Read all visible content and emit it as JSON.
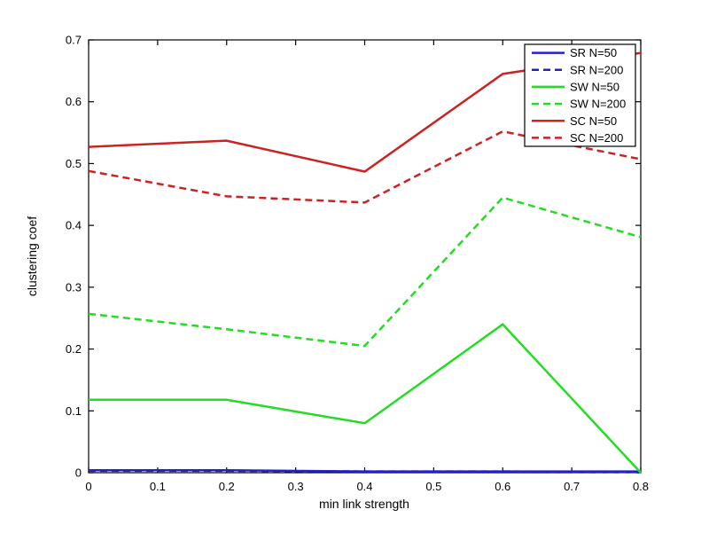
{
  "figure": {
    "background": "#ffffff",
    "axis_color": "#000000",
    "legend_border_color": "#000000",
    "legend_background": "#ffffff"
  },
  "chart_data": {
    "type": "line",
    "title": "",
    "xlabel": "min link strength",
    "ylabel": "clustering coef",
    "xlim": [
      0,
      0.8
    ],
    "ylim": [
      0,
      0.7
    ],
    "grid": false,
    "legend_position": "upper-right-inside",
    "xtick_labels": [
      "0",
      "0.1",
      "0.2",
      "0.3",
      "0.4",
      "0.5",
      "0.6",
      "0.7",
      "0.8"
    ],
    "xtick_values": [
      0,
      0.1,
      0.2,
      0.3,
      0.4,
      0.5,
      0.6,
      0.7,
      0.8
    ],
    "ytick_labels": [
      "0",
      "0.1",
      "0.2",
      "0.3",
      "0.4",
      "0.5",
      "0.6",
      "0.7"
    ],
    "ytick_values": [
      0,
      0.1,
      0.2,
      0.3,
      0.4,
      0.5,
      0.6,
      0.7
    ],
    "x": [
      0,
      0.2,
      0.4,
      0.6,
      0.8
    ],
    "series": [
      {
        "name": "SR N=50",
        "color": "#2222cc",
        "style": "solid",
        "values": [
          0.004,
          0.004,
          0.002,
          0.002,
          0.002
        ]
      },
      {
        "name": "SR N=200",
        "color": "#2222cc",
        "style": "dashed",
        "values": [
          0.003,
          0.003,
          0.002,
          0.002,
          0.001
        ]
      },
      {
        "name": "SW N=50",
        "color": "#22dd22",
        "style": "solid",
        "values": [
          0.118,
          0.118,
          0.08,
          0.24,
          0.0
        ]
      },
      {
        "name": "SW N=200",
        "color": "#22dd22",
        "style": "dashed",
        "values": [
          0.257,
          0.232,
          0.205,
          0.445,
          0.381
        ]
      },
      {
        "name": "SC N=50",
        "color": "#cc2222",
        "style": "solid",
        "values": [
          0.527,
          0.537,
          0.487,
          0.645,
          0.679
        ]
      },
      {
        "name": "SC N=200",
        "color": "#cc2222",
        "style": "dashed",
        "values": [
          0.488,
          0.447,
          0.437,
          0.552,
          0.507
        ]
      }
    ]
  }
}
